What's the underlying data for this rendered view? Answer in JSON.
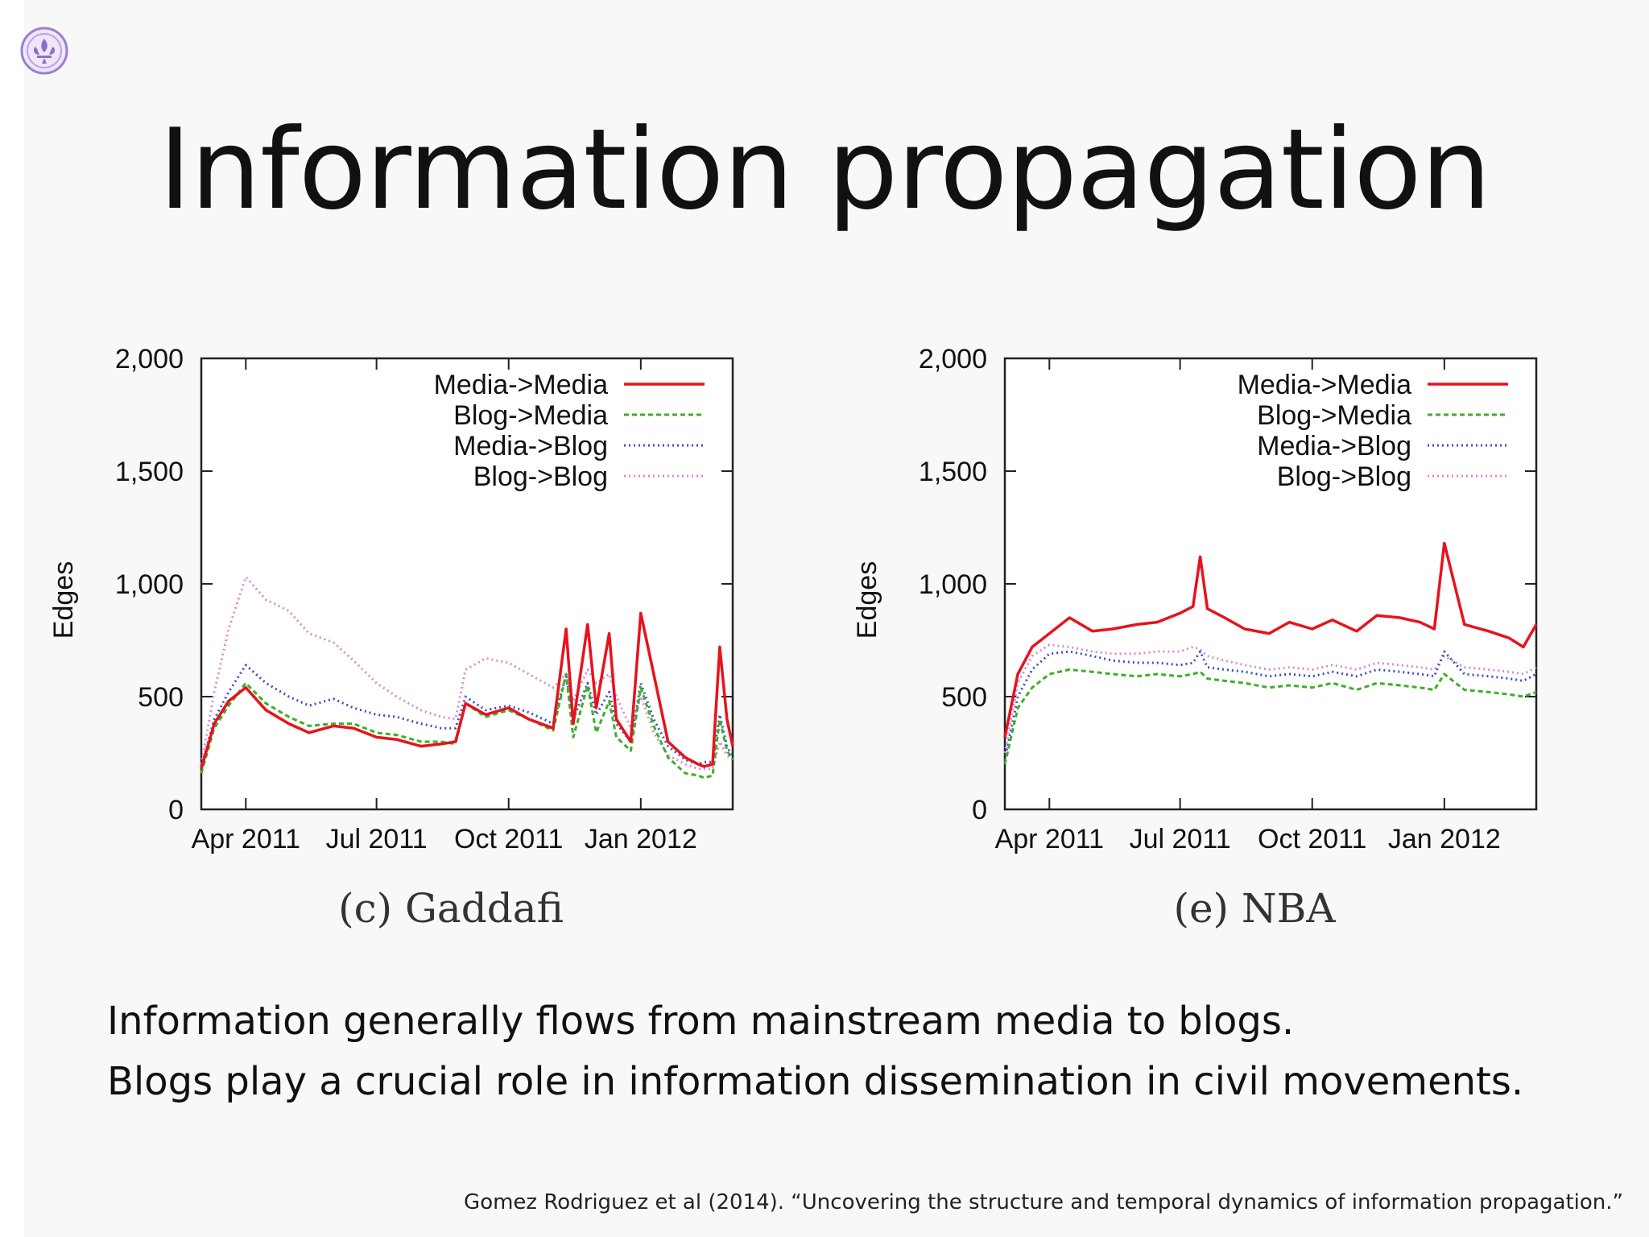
{
  "slide": {
    "title": "Information propagation",
    "body_lines": [
      "Information generally flows from mainstream media to blogs.",
      "Blogs play a crucial role in information dissemination in civil movements."
    ],
    "citation": "Gomez Rodriguez et al (2014). “Uncovering the structure and temporal dynamics of information propagation.”",
    "logo_icon": "fleur-de-lis-icon"
  },
  "colors": {
    "media_media": "#e8131a",
    "blog_media": "#3fae2a",
    "media_blog": "#3d4fbf",
    "blog_blog": "#d98ad3"
  },
  "chart_data": [
    {
      "type": "line",
      "caption": "(c) Gaddafi",
      "ylabel": "Edges",
      "ylim": [
        0,
        2000
      ],
      "yticks": [
        "0",
        "500",
        "1,000",
        "1,500",
        "2,000"
      ],
      "x_tick_labels": [
        "Apr 2011",
        "Jul 2011",
        "Oct 2011",
        "Jan 2012"
      ],
      "x_range": [
        "2011-03-01",
        "2012-03-05"
      ],
      "legend_position": "top-right",
      "series": [
        {
          "name": "Media->Media",
          "style": "solid",
          "x": [
            "2011-03-01",
            "2011-03-10",
            "2011-03-20",
            "2011-04-01",
            "2011-04-15",
            "2011-05-01",
            "2011-05-15",
            "2011-06-01",
            "2011-06-15",
            "2011-07-01",
            "2011-07-15",
            "2011-08-01",
            "2011-08-15",
            "2011-08-25",
            "2011-09-01",
            "2011-09-15",
            "2011-10-01",
            "2011-10-15",
            "2011-11-01",
            "2011-11-10",
            "2011-11-15",
            "2011-11-25",
            "2011-12-01",
            "2011-12-10",
            "2011-12-15",
            "2011-12-25",
            "2012-01-01",
            "2012-01-10",
            "2012-01-20",
            "2012-02-01",
            "2012-02-10",
            "2012-02-14",
            "2012-02-20",
            "2012-02-25",
            "2012-03-01",
            "2012-03-05"
          ],
          "values": [
            180,
            380,
            480,
            540,
            440,
            380,
            340,
            370,
            360,
            320,
            310,
            280,
            290,
            300,
            470,
            420,
            450,
            400,
            360,
            800,
            380,
            820,
            450,
            780,
            400,
            300,
            870,
            600,
            300,
            230,
            200,
            190,
            200,
            720,
            400,
            280
          ]
        },
        {
          "name": "Blog->Media",
          "style": "dashed",
          "x": [
            "2011-03-01",
            "2011-03-10",
            "2011-03-20",
            "2011-04-01",
            "2011-04-15",
            "2011-05-01",
            "2011-05-15",
            "2011-06-01",
            "2011-06-15",
            "2011-07-01",
            "2011-07-15",
            "2011-08-01",
            "2011-08-15",
            "2011-08-25",
            "2011-09-01",
            "2011-09-15",
            "2011-10-01",
            "2011-10-15",
            "2011-11-01",
            "2011-11-10",
            "2011-11-15",
            "2011-11-25",
            "2011-12-01",
            "2011-12-10",
            "2011-12-15",
            "2011-12-25",
            "2012-01-01",
            "2012-01-10",
            "2012-01-20",
            "2012-02-01",
            "2012-02-10",
            "2012-02-14",
            "2012-02-20",
            "2012-02-25",
            "2012-03-01",
            "2012-03-05"
          ],
          "values": [
            160,
            360,
            460,
            560,
            470,
            410,
            370,
            380,
            380,
            340,
            330,
            300,
            300,
            290,
            470,
            410,
            440,
            400,
            350,
            600,
            320,
            550,
            340,
            480,
            320,
            260,
            540,
            370,
            230,
            160,
            150,
            140,
            150,
            400,
            260,
            220
          ]
        },
        {
          "name": "Media->Blog",
          "style": "dotted",
          "x": [
            "2011-03-01",
            "2011-03-10",
            "2011-03-20",
            "2011-04-01",
            "2011-04-15",
            "2011-05-01",
            "2011-05-15",
            "2011-06-01",
            "2011-06-15",
            "2011-07-01",
            "2011-07-15",
            "2011-08-01",
            "2011-08-15",
            "2011-08-25",
            "2011-09-01",
            "2011-09-15",
            "2011-10-01",
            "2011-10-15",
            "2011-11-01",
            "2011-11-10",
            "2011-11-15",
            "2011-11-25",
            "2011-12-01",
            "2011-12-10",
            "2011-12-15",
            "2011-12-25",
            "2012-01-01",
            "2012-01-10",
            "2012-01-20",
            "2012-02-01",
            "2012-02-10",
            "2012-02-14",
            "2012-02-20",
            "2012-02-25",
            "2012-03-01",
            "2012-03-05"
          ],
          "values": [
            190,
            400,
            520,
            640,
            560,
            500,
            460,
            490,
            450,
            420,
            410,
            380,
            360,
            360,
            500,
            440,
            460,
            430,
            380,
            600,
            400,
            560,
            420,
            520,
            380,
            300,
            560,
            400,
            280,
            220,
            200,
            210,
            210,
            420,
            280,
            230
          ]
        },
        {
          "name": "Blog->Blog",
          "style": "dotted",
          "x": [
            "2011-03-01",
            "2011-03-10",
            "2011-03-20",
            "2011-04-01",
            "2011-04-15",
            "2011-05-01",
            "2011-05-15",
            "2011-06-01",
            "2011-06-15",
            "2011-07-01",
            "2011-07-15",
            "2011-08-01",
            "2011-08-15",
            "2011-08-25",
            "2011-09-01",
            "2011-09-15",
            "2011-10-01",
            "2011-10-15",
            "2011-11-01",
            "2011-11-10",
            "2011-11-15",
            "2011-11-25",
            "2011-12-01",
            "2011-12-10",
            "2011-12-15",
            "2011-12-25",
            "2012-01-01",
            "2012-01-10",
            "2012-01-20",
            "2012-02-01",
            "2012-02-10",
            "2012-02-14",
            "2012-02-20",
            "2012-02-25",
            "2012-03-01",
            "2012-03-05"
          ],
          "values": [
            200,
            520,
            800,
            1030,
            930,
            880,
            780,
            740,
            660,
            560,
            500,
            440,
            410,
            400,
            620,
            670,
            650,
            600,
            540,
            600,
            480,
            620,
            560,
            600,
            500,
            360,
            500,
            340,
            240,
            200,
            180,
            180,
            180,
            300,
            240,
            220
          ]
        }
      ]
    },
    {
      "type": "line",
      "caption": "(e) NBA",
      "ylabel": "Edges",
      "ylim": [
        0,
        2000
      ],
      "yticks": [
        "0",
        "500",
        "1,000",
        "1,500",
        "2,000"
      ],
      "x_tick_labels": [
        "Apr 2011",
        "Jul 2011",
        "Oct 2011",
        "Jan 2012"
      ],
      "x_range": [
        "2011-03-01",
        "2012-03-05"
      ],
      "legend_position": "top-right",
      "series": [
        {
          "name": "Media->Media",
          "style": "solid",
          "x": [
            "2011-03-01",
            "2011-03-10",
            "2011-03-20",
            "2011-04-01",
            "2011-04-15",
            "2011-05-01",
            "2011-05-15",
            "2011-06-01",
            "2011-06-15",
            "2011-07-01",
            "2011-07-10",
            "2011-07-15",
            "2011-07-20",
            "2011-08-01",
            "2011-08-15",
            "2011-09-01",
            "2011-09-15",
            "2011-10-01",
            "2011-10-15",
            "2011-11-01",
            "2011-11-15",
            "2011-12-01",
            "2011-12-15",
            "2011-12-25",
            "2012-01-01",
            "2012-01-15",
            "2012-02-01",
            "2012-02-15",
            "2012-02-25",
            "2012-03-05"
          ],
          "values": [
            320,
            600,
            720,
            780,
            850,
            790,
            800,
            820,
            830,
            870,
            900,
            1120,
            890,
            850,
            800,
            780,
            830,
            800,
            840,
            790,
            860,
            850,
            830,
            800,
            1180,
            820,
            790,
            760,
            720,
            820
          ]
        },
        {
          "name": "Blog->Media",
          "style": "dashed",
          "x": [
            "2011-03-01",
            "2011-03-10",
            "2011-03-20",
            "2011-04-01",
            "2011-04-15",
            "2011-05-01",
            "2011-05-15",
            "2011-06-01",
            "2011-06-15",
            "2011-07-01",
            "2011-07-10",
            "2011-07-15",
            "2011-07-20",
            "2011-08-01",
            "2011-08-15",
            "2011-09-01",
            "2011-09-15",
            "2011-10-01",
            "2011-10-15",
            "2011-11-01",
            "2011-11-15",
            "2011-12-01",
            "2011-12-15",
            "2011-12-25",
            "2012-01-01",
            "2012-01-15",
            "2012-02-01",
            "2012-02-15",
            "2012-02-25",
            "2012-03-05"
          ],
          "values": [
            200,
            450,
            540,
            600,
            620,
            610,
            600,
            590,
            600,
            590,
            600,
            610,
            580,
            570,
            560,
            540,
            550,
            540,
            560,
            530,
            560,
            550,
            540,
            530,
            600,
            530,
            520,
            510,
            500,
            520
          ]
        },
        {
          "name": "Media->Blog",
          "style": "dotted",
          "x": [
            "2011-03-01",
            "2011-03-10",
            "2011-03-20",
            "2011-04-01",
            "2011-04-15",
            "2011-05-01",
            "2011-05-15",
            "2011-06-01",
            "2011-06-15",
            "2011-07-01",
            "2011-07-10",
            "2011-07-15",
            "2011-07-20",
            "2011-08-01",
            "2011-08-15",
            "2011-09-01",
            "2011-09-15",
            "2011-10-01",
            "2011-10-15",
            "2011-11-01",
            "2011-11-15",
            "2011-12-01",
            "2011-12-15",
            "2011-12-25",
            "2012-01-01",
            "2012-01-15",
            "2012-02-01",
            "2012-02-15",
            "2012-02-25",
            "2012-03-05"
          ],
          "values": [
            220,
            500,
            620,
            690,
            700,
            680,
            660,
            650,
            650,
            640,
            650,
            700,
            630,
            620,
            610,
            590,
            600,
            590,
            610,
            590,
            620,
            610,
            600,
            590,
            700,
            600,
            590,
            580,
            570,
            600
          ]
        },
        {
          "name": "Blog->Blog",
          "style": "dotted",
          "x": [
            "2011-03-01",
            "2011-03-10",
            "2011-03-20",
            "2011-04-01",
            "2011-04-15",
            "2011-05-01",
            "2011-05-15",
            "2011-06-01",
            "2011-06-15",
            "2011-07-01",
            "2011-07-10",
            "2011-07-15",
            "2011-07-20",
            "2011-08-01",
            "2011-08-15",
            "2011-09-01",
            "2011-09-15",
            "2011-10-01",
            "2011-10-15",
            "2011-11-01",
            "2011-11-15",
            "2011-12-01",
            "2011-12-15",
            "2011-12-25",
            "2012-01-01",
            "2012-01-15",
            "2012-02-01",
            "2012-02-15",
            "2012-02-25",
            "2012-03-05"
          ],
          "values": [
            250,
            560,
            680,
            730,
            720,
            700,
            690,
            690,
            700,
            700,
            720,
            710,
            680,
            660,
            640,
            620,
            630,
            620,
            640,
            620,
            650,
            640,
            630,
            620,
            680,
            630,
            620,
            610,
            600,
            630
          ]
        }
      ]
    }
  ]
}
